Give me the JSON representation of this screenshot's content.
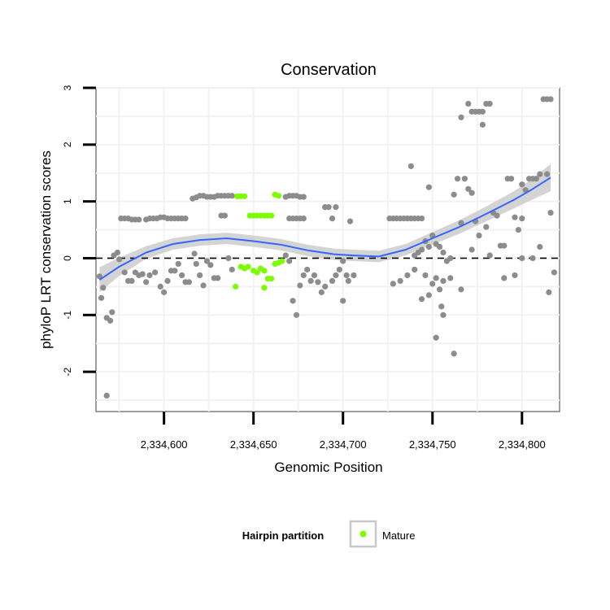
{
  "chart_data": {
    "type": "scatter",
    "title": "Conservation",
    "xlabel": "Genomic Position",
    "ylabel": "phyloP LRT conservation scores",
    "xlim": [
      2334562,
      2334821
    ],
    "ylim": [
      -2.7,
      3.0
    ],
    "x_ticks": [
      2334600,
      2334650,
      2334700,
      2334750,
      2334800
    ],
    "x_tick_labels": [
      "2,334,600",
      "2,334,650",
      "2,334,700",
      "2,334,750",
      "2,334,800"
    ],
    "y_ticks": [
      -2,
      -1,
      0,
      1,
      2,
      3
    ],
    "y_tick_labels": [
      "-2",
      "-1",
      "0",
      "1",
      "2",
      "3"
    ],
    "grid": true,
    "reference_line": {
      "y": 0,
      "style": "dashed"
    },
    "legend": {
      "title": "Hairpin partition",
      "position": "bottom",
      "entries": [
        {
          "label": "Mature",
          "color": "#7cfc00"
        }
      ]
    },
    "colors": {
      "other_points": "#8c8c8c",
      "mature_points": "#7cfc00",
      "smooth_line": "#3366ff",
      "smooth_band": "#cccccc"
    },
    "series": [
      {
        "name": "Mature",
        "points": [
          [
            2334641,
            1.09
          ],
          [
            2334643,
            1.09
          ],
          [
            2334645,
            1.09
          ],
          [
            2334648,
            0.75
          ],
          [
            2334650,
            0.75
          ],
          [
            2334652,
            0.75
          ],
          [
            2334654,
            0.75
          ],
          [
            2334656,
            0.75
          ],
          [
            2334658,
            0.75
          ],
          [
            2334660,
            0.75
          ],
          [
            2334662,
            1.12
          ],
          [
            2334664,
            1.1
          ],
          [
            2334643,
            -0.15
          ],
          [
            2334645,
            -0.18
          ],
          [
            2334647,
            -0.15
          ],
          [
            2334650,
            -0.22
          ],
          [
            2334652,
            -0.25
          ],
          [
            2334654,
            -0.18
          ],
          [
            2334656,
            -0.22
          ],
          [
            2334658,
            -0.36
          ],
          [
            2334660,
            -0.36
          ],
          [
            2334662,
            -0.1
          ],
          [
            2334664,
            -0.08
          ],
          [
            2334666,
            -0.05
          ],
          [
            2334640,
            -0.5
          ],
          [
            2334656,
            -0.52
          ]
        ]
      },
      {
        "points": [
          [
            2334564,
            -0.32
          ],
          [
            2334565,
            -0.7
          ],
          [
            2334566,
            -0.52
          ],
          [
            2334568,
            -1.05
          ],
          [
            2334570,
            -1.1
          ],
          [
            2334571,
            -0.95
          ],
          [
            2334568,
            -2.42
          ],
          [
            2334572,
            0.05
          ],
          [
            2334574,
            0.1
          ],
          [
            2334575,
            -0.02
          ],
          [
            2334576,
            0.7
          ],
          [
            2334578,
            0.7
          ],
          [
            2334580,
            0.7
          ],
          [
            2334582,
            0.68
          ],
          [
            2334584,
            0.68
          ],
          [
            2334586,
            0.68
          ],
          [
            2334590,
            0.68
          ],
          [
            2334592,
            0.7
          ],
          [
            2334594,
            0.7
          ],
          [
            2334596,
            0.7
          ],
          [
            2334598,
            0.72
          ],
          [
            2334600,
            0.72
          ],
          [
            2334602,
            0.7
          ],
          [
            2334604,
            0.7
          ],
          [
            2334606,
            0.7
          ],
          [
            2334608,
            0.7
          ],
          [
            2334610,
            0.7
          ],
          [
            2334612,
            0.7
          ],
          [
            2334578,
            -0.25
          ],
          [
            2334580,
            -0.4
          ],
          [
            2334582,
            -0.4
          ],
          [
            2334584,
            -0.25
          ],
          [
            2334586,
            -0.3
          ],
          [
            2334588,
            -0.28
          ],
          [
            2334590,
            -0.42
          ],
          [
            2334592,
            -0.3
          ],
          [
            2334595,
            -0.25
          ],
          [
            2334598,
            -0.5
          ],
          [
            2334600,
            -0.6
          ],
          [
            2334602,
            -0.4
          ],
          [
            2334604,
            -0.22
          ],
          [
            2334606,
            -0.22
          ],
          [
            2334608,
            -0.1
          ],
          [
            2334610,
            -0.3
          ],
          [
            2334612,
            -0.42
          ],
          [
            2334614,
            -0.42
          ],
          [
            2334616,
            1.05
          ],
          [
            2334618,
            1.07
          ],
          [
            2334620,
            1.1
          ],
          [
            2334622,
            1.1
          ],
          [
            2334624,
            1.08
          ],
          [
            2334626,
            1.08
          ],
          [
            2334628,
            1.08
          ],
          [
            2334630,
            1.1
          ],
          [
            2334632,
            1.1
          ],
          [
            2334634,
            1.1
          ],
          [
            2334636,
            1.1
          ],
          [
            2334638,
            1.1
          ],
          [
            2334617,
            0.08
          ],
          [
            2334618,
            -0.1
          ],
          [
            2334620,
            -0.3
          ],
          [
            2334622,
            -0.48
          ],
          [
            2334624,
            -0.05
          ],
          [
            2334626,
            -0.12
          ],
          [
            2334628,
            -0.35
          ],
          [
            2334630,
            -0.35
          ],
          [
            2334632,
            0.75
          ],
          [
            2334634,
            0.75
          ],
          [
            2334636,
            0.0
          ],
          [
            2334638,
            -0.2
          ],
          [
            2334668,
            1.08
          ],
          [
            2334670,
            1.1
          ],
          [
            2334672,
            1.1
          ],
          [
            2334674,
            1.1
          ],
          [
            2334676,
            1.08
          ],
          [
            2334678,
            1.08
          ],
          [
            2334668,
            0.05
          ],
          [
            2334670,
            0.7
          ],
          [
            2334672,
            0.7
          ],
          [
            2334674,
            0.7
          ],
          [
            2334676,
            0.7
          ],
          [
            2334678,
            0.7
          ],
          [
            2334670,
            -0.05
          ],
          [
            2334672,
            -0.75
          ],
          [
            2334674,
            -1.0
          ],
          [
            2334676,
            -0.48
          ],
          [
            2334678,
            -0.3
          ],
          [
            2334680,
            -0.2
          ],
          [
            2334682,
            -0.4
          ],
          [
            2334684,
            -0.3
          ],
          [
            2334686,
            -0.42
          ],
          [
            2334688,
            -0.6
          ],
          [
            2334690,
            0.9
          ],
          [
            2334692,
            0.9
          ],
          [
            2334694,
            0.7
          ],
          [
            2334696,
            0.9
          ],
          [
            2334698,
            -0.2
          ],
          [
            2334700,
            -0.05
          ],
          [
            2334702,
            -0.3
          ],
          [
            2334704,
            0.65
          ],
          [
            2334690,
            -0.5
          ],
          [
            2334694,
            -0.4
          ],
          [
            2334696,
            -0.3
          ],
          [
            2334700,
            -0.75
          ],
          [
            2334703,
            -0.4
          ],
          [
            2334706,
            -0.3
          ],
          [
            2334726,
            0.7
          ],
          [
            2334728,
            0.7
          ],
          [
            2334730,
            0.7
          ],
          [
            2334732,
            0.7
          ],
          [
            2334734,
            0.7
          ],
          [
            2334736,
            0.7
          ],
          [
            2334738,
            0.7
          ],
          [
            2334740,
            0.7
          ],
          [
            2334742,
            0.7
          ],
          [
            2334744,
            0.7
          ],
          [
            2334728,
            -0.45
          ],
          [
            2334732,
            -0.4
          ],
          [
            2334736,
            -0.3
          ],
          [
            2334740,
            -0.2
          ],
          [
            2334744,
            -0.72
          ],
          [
            2334746,
            -0.3
          ],
          [
            2334748,
            -0.65
          ],
          [
            2334750,
            -0.45
          ],
          [
            2334752,
            -0.35
          ],
          [
            2334754,
            -0.55
          ],
          [
            2334755,
            -0.85
          ],
          [
            2334756,
            -1.0
          ],
          [
            2334752,
            -1.4
          ],
          [
            2334756,
            -0.4
          ],
          [
            2334758,
            -0.05
          ],
          [
            2334760,
            -0.35
          ],
          [
            2334762,
            -1.68
          ],
          [
            2334762,
            1.12
          ],
          [
            2334748,
            1.25
          ],
          [
            2334750,
            0.4
          ],
          [
            2334752,
            0.25
          ],
          [
            2334754,
            0.2
          ],
          [
            2334756,
            0.1
          ],
          [
            2334760,
            0.0
          ],
          [
            2334738,
            1.62
          ],
          [
            2334740,
            0.05
          ],
          [
            2334742,
            0.1
          ],
          [
            2334744,
            0.15
          ],
          [
            2334746,
            0.3
          ],
          [
            2334748,
            0.2
          ],
          [
            2334764,
            1.4
          ],
          [
            2334766,
            0.62
          ],
          [
            2334768,
            1.4
          ],
          [
            2334770,
            1.22
          ],
          [
            2334772,
            1.15
          ],
          [
            2334774,
            0.65
          ],
          [
            2334766,
            2.48
          ],
          [
            2334770,
            2.72
          ],
          [
            2334772,
            2.58
          ],
          [
            2334774,
            2.58
          ],
          [
            2334776,
            2.58
          ],
          [
            2334778,
            2.58
          ],
          [
            2334778,
            2.35
          ],
          [
            2334780,
            2.72
          ],
          [
            2334782,
            2.72
          ],
          [
            2334766,
            -0.55
          ],
          [
            2334772,
            0.15
          ],
          [
            2334776,
            0.4
          ],
          [
            2334780,
            0.55
          ],
          [
            2334782,
            0.05
          ],
          [
            2334784,
            0.8
          ],
          [
            2334786,
            0.75
          ],
          [
            2334788,
            0.22
          ],
          [
            2334790,
            -0.35
          ],
          [
            2334790,
            0.22
          ],
          [
            2334792,
            1.4
          ],
          [
            2334794,
            1.4
          ],
          [
            2334796,
            0.72
          ],
          [
            2334796,
            -0.3
          ],
          [
            2334798,
            0.5
          ],
          [
            2334800,
            1.3
          ],
          [
            2334800,
            0.7
          ],
          [
            2334800,
            0.0
          ],
          [
            2334802,
            1.2
          ],
          [
            2334804,
            1.4
          ],
          [
            2334806,
            1.4
          ],
          [
            2334806,
            0.0
          ],
          [
            2334808,
            1.4
          ],
          [
            2334810,
            0.2
          ],
          [
            2334810,
            1.48
          ],
          [
            2334812,
            2.8
          ],
          [
            2334814,
            2.8
          ],
          [
            2334814,
            1.48
          ],
          [
            2334816,
            2.8
          ],
          [
            2334816,
            0.8
          ],
          [
            2334815,
            -0.6
          ],
          [
            2334818,
            -0.25
          ]
        ]
      }
    ],
    "smooth_fit": [
      [
        2334564,
        -0.38,
        0.22
      ],
      [
        2334575,
        -0.15,
        0.16
      ],
      [
        2334590,
        0.1,
        0.11
      ],
      [
        2334605,
        0.25,
        0.1
      ],
      [
        2334620,
        0.32,
        0.1
      ],
      [
        2334635,
        0.35,
        0.1
      ],
      [
        2334650,
        0.3,
        0.1
      ],
      [
        2334665,
        0.24,
        0.1
      ],
      [
        2334680,
        0.14,
        0.1
      ],
      [
        2334695,
        0.07,
        0.1
      ],
      [
        2334705,
        0.05,
        0.1
      ],
      [
        2334720,
        0.03,
        0.1
      ],
      [
        2334735,
        0.15,
        0.1
      ],
      [
        2334750,
        0.35,
        0.11
      ],
      [
        2334765,
        0.55,
        0.12
      ],
      [
        2334780,
        0.78,
        0.13
      ],
      [
        2334795,
        1.02,
        0.15
      ],
      [
        2334805,
        1.2,
        0.18
      ],
      [
        2334816,
        1.42,
        0.24
      ]
    ]
  }
}
